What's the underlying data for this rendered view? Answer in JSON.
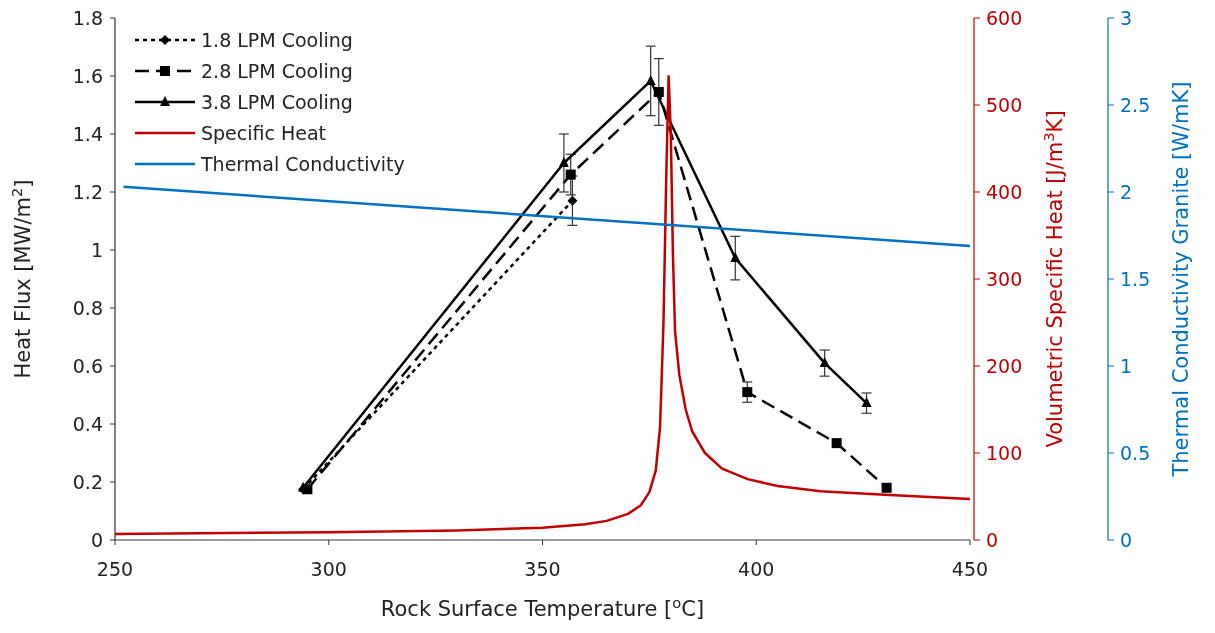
{
  "chart_data": {
    "type": "line",
    "xlabel": "Rock Surface Temperature [$^{o}$C]",
    "ylabel": "Heat Flux [MW/m$^{2}$]",
    "y2label": "Volumetric Specific Heat [J/m$^{3}$K]",
    "y3label": "Thermal Conductivity Granite [W/mK]",
    "xlim": [
      250,
      450
    ],
    "xticks": [
      250,
      300,
      350,
      400,
      450
    ],
    "ylim": [
      0,
      1.8
    ],
    "yticks": [
      0,
      0.2,
      0.4,
      0.6,
      0.8,
      1,
      1.2,
      1.4,
      1.6,
      1.8
    ],
    "y2lim": [
      0,
      600
    ],
    "y2ticks": [
      0,
      100,
      200,
      300,
      400,
      500,
      600
    ],
    "y3lim": [
      0,
      3
    ],
    "y3ticks": [
      0,
      0.5,
      1,
      1.5,
      2,
      2.5,
      3
    ],
    "grid": false,
    "legend": "top left",
    "series": [
      {
        "name": "1.8 LPM Cooling",
        "color": "#000000",
        "marker": "diamond",
        "line_style": "dotted",
        "x": [
          294,
          357
        ],
        "values": [
          0.175,
          1.17
        ],
        "errors": [
          null,
          0.085
        ]
      },
      {
        "name": "2.8 LPM Cooling",
        "color": "#000000",
        "marker": "square",
        "line_style": "dashed",
        "x": [
          295,
          356.6,
          377.2,
          397.9,
          418.8,
          430.5
        ],
        "values": [
          0.175,
          1.26,
          1.545,
          0.51,
          0.334,
          0.18
        ],
        "errors": [
          null,
          0.07,
          0.115,
          0.035,
          null,
          null
        ]
      },
      {
        "name": "3.8 LPM Cooling",
        "color": "#000000",
        "marker": "triangle",
        "line_style": "solid",
        "x": [
          294,
          355,
          375.3,
          395.1,
          416,
          425.8
        ],
        "values": [
          0.18,
          1.3,
          1.583,
          0.972,
          0.61,
          0.472
        ],
        "errors": [
          null,
          0.1,
          0.12,
          0.075,
          0.045,
          0.035
        ]
      },
      {
        "name": "Specific Heat",
        "color": "#c00000",
        "marker": "none",
        "line_style": "solid",
        "axis": "y2",
        "x": [
          250,
          300,
          330,
          350,
          360,
          365,
          370,
          373,
          375,
          376.5,
          377.5,
          378.3,
          379,
          379.5,
          380,
          380.5,
          381,
          382,
          383.5,
          385,
          388,
          392,
          398,
          405,
          415,
          430,
          450
        ],
        "values": [
          7,
          9,
          11,
          14,
          18,
          22,
          30,
          40,
          55,
          80,
          130,
          250,
          430,
          533,
          470,
          330,
          240,
          190,
          150,
          125,
          100,
          82,
          70,
          62,
          56,
          52,
          47
        ]
      },
      {
        "name": "Thermal Conductivity",
        "color": "#0070c0",
        "marker": "none",
        "line_style": "solid",
        "axis": "y3",
        "x": [
          252,
          450
        ],
        "values": [
          2.03,
          1.69
        ]
      }
    ]
  }
}
